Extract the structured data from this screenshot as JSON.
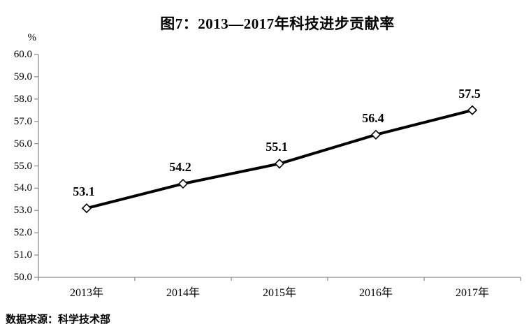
{
  "title": "图7：2013—2017年科技进步贡献率",
  "unit_label": "%",
  "source": "数据来源：科学技术部",
  "colors": {
    "axis": "#909090",
    "line": "#000000",
    "marker_fill": "#ffffff",
    "marker_stroke": "#000000",
    "text": "#000000"
  },
  "chart_data": {
    "type": "line",
    "title": "图7：2013—2017年科技进步贡献率",
    "categories": [
      "2013年",
      "2014年",
      "2015年",
      "2016年",
      "2017年"
    ],
    "series": [
      {
        "name": "科技进步贡献率",
        "values": [
          53.1,
          54.2,
          55.1,
          56.4,
          57.5
        ]
      }
    ],
    "data_labels": [
      "53.1",
      "54.2",
      "55.1",
      "56.4",
      "57.5"
    ],
    "xlabel": "",
    "ylabel": "%",
    "ylim": [
      50.0,
      60.0
    ],
    "ytick_step": 1.0,
    "ytick_decimals": 1,
    "grid": false,
    "legend_position": "none",
    "marker": "open-diamond",
    "source_note": "数据来源：科学技术部"
  }
}
